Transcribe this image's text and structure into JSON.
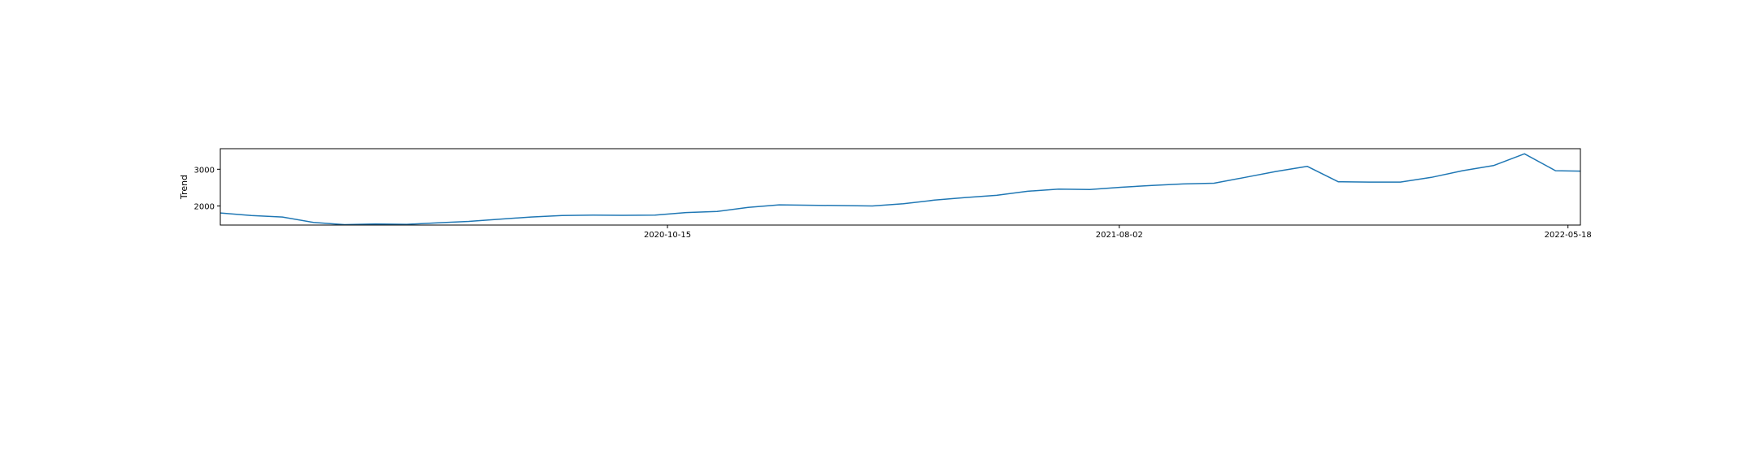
{
  "chart_data": {
    "type": "line",
    "title": "",
    "xlabel": "",
    "ylabel": "Trend",
    "x_tick_labels": [
      "2020-10-15",
      "2021-08-02",
      "2022-05-18"
    ],
    "y_tick_labels": [
      "2000",
      "3000"
    ],
    "y_ticks": [
      2000,
      3000
    ],
    "xlim": [
      "2020-01-01",
      "2022-05-26"
    ],
    "ylim": [
      1480,
      3560
    ],
    "grid": false,
    "series": [
      {
        "color": "#1f77b4",
        "x": [
          "2020-01-01",
          "2020-01-21",
          "2020-02-10",
          "2020-03-01",
          "2020-03-21",
          "2020-04-10",
          "2020-04-30",
          "2020-05-20",
          "2020-06-09",
          "2020-06-29",
          "2020-07-19",
          "2020-08-08",
          "2020-08-28",
          "2020-09-17",
          "2020-10-07",
          "2020-10-27",
          "2020-11-16",
          "2020-12-06",
          "2020-12-26",
          "2021-01-15",
          "2021-02-04",
          "2021-02-24",
          "2021-03-16",
          "2021-04-05",
          "2021-04-25",
          "2021-05-15",
          "2021-06-04",
          "2021-06-24",
          "2021-07-14",
          "2021-08-03",
          "2021-08-23",
          "2021-09-12",
          "2021-10-02",
          "2021-10-22",
          "2021-11-11",
          "2021-12-01",
          "2021-12-21",
          "2022-01-10",
          "2022-01-30",
          "2022-02-19",
          "2022-03-11",
          "2022-03-31",
          "2022-04-20",
          "2022-05-10",
          "2022-05-26"
        ],
        "y": [
          1810,
          1740,
          1700,
          1550,
          1490,
          1510,
          1500,
          1540,
          1580,
          1640,
          1700,
          1740,
          1750,
          1745,
          1750,
          1820,
          1850,
          1960,
          2030,
          2020,
          2010,
          2000,
          2060,
          2160,
          2230,
          2290,
          2400,
          2460,
          2450,
          2510,
          2560,
          2600,
          2620,
          2780,
          2940,
          3080,
          2660,
          2650,
          2650,
          2780,
          2960,
          3100,
          3420,
          2960,
          2950
        ]
      }
    ]
  }
}
